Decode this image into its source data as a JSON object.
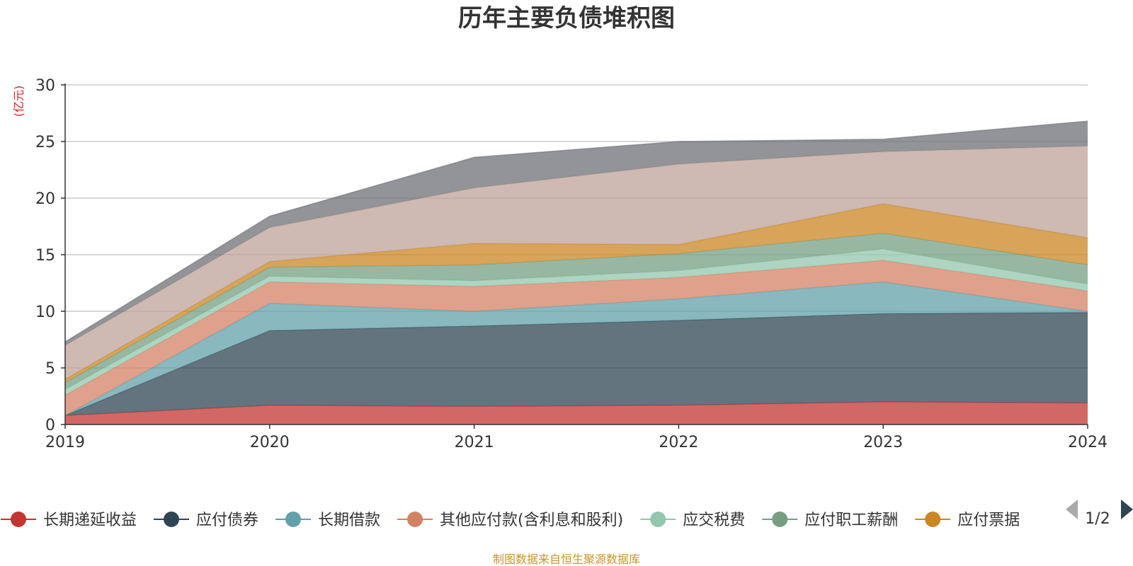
{
  "colors": {
    "title": "#333333",
    "unit": "#e02020",
    "source": "#c8952a",
    "axis": "#333333",
    "grid": "#cccccc",
    "pager_active": "#2f4554",
    "pager_inactive": "#aaaaaa"
  },
  "legend": {
    "page": "1/2",
    "prev_icon": "triangle-left-icon",
    "next_icon": "triangle-right-icon"
  },
  "source_note": "制图数据来自恒生聚源数据库",
  "chart_data": {
    "type": "area",
    "stacked": true,
    "title": "历年主要负债堆积图",
    "ylabel": "(亿元)",
    "xlabel": "",
    "x": [
      "2019",
      "2020",
      "2021",
      "2022",
      "2023",
      "2024"
    ],
    "ylim": [
      0,
      30
    ],
    "yticks": [
      0,
      5,
      10,
      15,
      20,
      25,
      30
    ],
    "grid": true,
    "legend_position": "bottom",
    "series": [
      {
        "name": "长期递延收益",
        "color": "#c23531",
        "values": [
          0.8,
          1.7,
          1.6,
          1.7,
          2.0,
          1.9
        ]
      },
      {
        "name": "应付债券",
        "color": "#2f4554",
        "values": [
          0.0,
          6.6,
          7.1,
          7.5,
          7.8,
          8.0
        ]
      },
      {
        "name": "长期借款",
        "color": "#61a0a8",
        "values": [
          0.0,
          2.4,
          1.3,
          1.9,
          2.8,
          0.1
        ]
      },
      {
        "name": "其他应付款(含利息和股利)",
        "color": "#d48265",
        "values": [
          1.8,
          1.9,
          2.2,
          1.9,
          1.9,
          1.8
        ]
      },
      {
        "name": "应交税费",
        "color": "#91c7ae",
        "values": [
          0.5,
          0.5,
          0.5,
          0.6,
          1.0,
          0.6
        ]
      },
      {
        "name": "应付职工薪酬",
        "color": "#749f83",
        "values": [
          0.6,
          0.8,
          1.4,
          1.5,
          1.4,
          1.7
        ]
      },
      {
        "name": "应付票据",
        "color": "#ca8622",
        "values": [
          0.3,
          0.5,
          1.9,
          0.8,
          2.6,
          2.4
        ]
      },
      {
        "name": "",
        "color": "#bda29a",
        "values": [
          3.0,
          3.0,
          4.9,
          7.1,
          4.6,
          8.1
        ]
      },
      {
        "name": "",
        "color": "#6e7074",
        "values": [
          0.3,
          1.0,
          2.7,
          2.0,
          1.1,
          2.2
        ]
      }
    ]
  }
}
